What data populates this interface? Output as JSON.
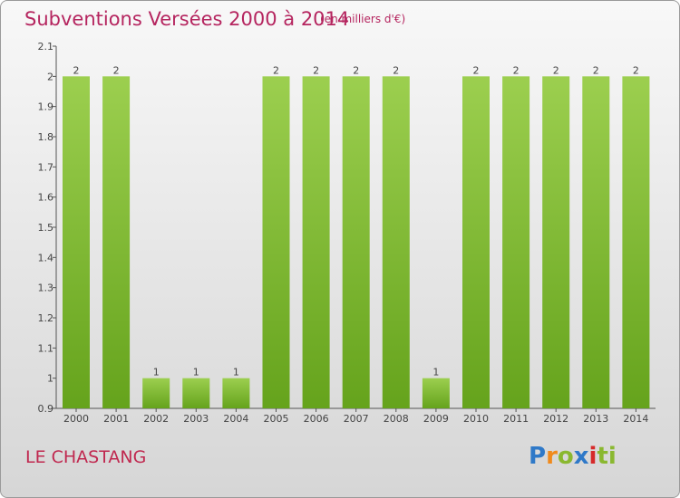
{
  "header": {
    "title": "Subventions Versées 2000 à 2014",
    "subtitle": "(en milliers d'€)"
  },
  "footer": {
    "commune": "LE CHASTANG",
    "logo": "Proxiti"
  },
  "colors": {
    "title": "#b5255f",
    "bar_top": "#9ccf4f",
    "bar_bottom": "#65a31c"
  },
  "chart_data": {
    "type": "bar",
    "title": "Subventions Versées 2000 à 2014",
    "subtitle": "(en milliers d'€)",
    "xlabel": "",
    "ylabel": "",
    "categories": [
      "2000",
      "2001",
      "2002",
      "2003",
      "2004",
      "2005",
      "2006",
      "2007",
      "2008",
      "2009",
      "2010",
      "2011",
      "2012",
      "2013",
      "2014"
    ],
    "values": [
      2,
      2,
      1,
      1,
      1,
      2,
      2,
      2,
      2,
      1,
      2,
      2,
      2,
      2,
      2
    ],
    "data_labels": [
      "2",
      "2",
      "1",
      "1",
      "1",
      "2",
      "2",
      "2",
      "2",
      "1",
      "2",
      "2",
      "2",
      "2",
      "2"
    ],
    "ylim": [
      0.9,
      2.1
    ],
    "yticks": [
      "0.9",
      "1",
      "1.1",
      "1.2",
      "1.3",
      "1.4",
      "1.5",
      "1.6",
      "1.7",
      "1.8",
      "1.9",
      "2",
      "2.1"
    ],
    "grid": false,
    "legend": "none"
  }
}
